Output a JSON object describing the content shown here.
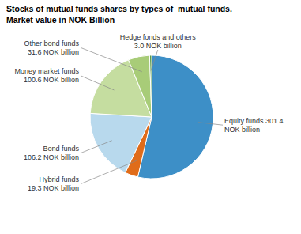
{
  "chart_data": {
    "type": "pie",
    "title": "Stocks of mutual funds shares by types of  mutual funds.",
    "subtitle": "Market value in NOK Billion",
    "categories": [
      "Equity funds 301.4\nNOK billion",
      "Hybrid funds\n19.3 NOK billion",
      "Bond funds\n106.2 NOK billion",
      "Money market funds\n100.6 NOK billion",
      "Other bond funds\n31.6 NOK billion",
      "Hedge fonds and others\n3.0 NOK billion"
    ],
    "values": [
      301.4,
      19.3,
      106.2,
      100.6,
      31.6,
      3.0
    ],
    "colors": [
      "#3d8fc7",
      "#e06c1a",
      "#b8d9ed",
      "#c5dda0",
      "#a8cc78",
      "#5a9948"
    ]
  }
}
